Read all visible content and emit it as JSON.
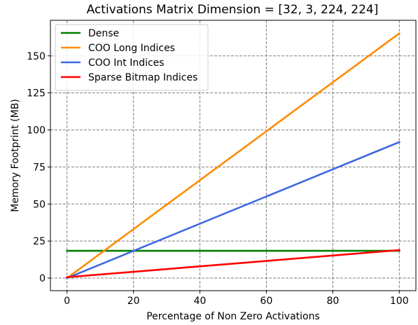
{
  "chart_data": {
    "type": "line",
    "title": "Activations Matrix Dimension = [32, 3, 224, 224]",
    "xlabel": "Percentage of Non Zero Activations",
    "ylabel": "Memory Footprint (MB)",
    "xlim": [
      -5,
      105
    ],
    "ylim": [
      -8.5,
      174
    ],
    "xticks": [
      0,
      20,
      40,
      60,
      80,
      100
    ],
    "yticks": [
      0,
      25,
      50,
      75,
      100,
      125,
      150
    ],
    "grid": true,
    "grid_style": "dashed",
    "legend_position": "top-left",
    "series": [
      {
        "name": "Dense",
        "color": "#008000",
        "x": [
          0,
          100
        ],
        "values": [
          18.4,
          18.4
        ]
      },
      {
        "name": "COO Long Indices",
        "color": "#ff8c00",
        "x": [
          0,
          100
        ],
        "values": [
          0,
          165.2
        ]
      },
      {
        "name": "COO Int Indices",
        "color": "#4169e1",
        "x": [
          0,
          100
        ],
        "values": [
          0,
          91.8
        ]
      },
      {
        "name": "Sparse Bitmap Indices",
        "color": "#ff0000",
        "x": [
          0,
          100
        ],
        "values": [
          0.6,
          18.9
        ]
      }
    ]
  }
}
